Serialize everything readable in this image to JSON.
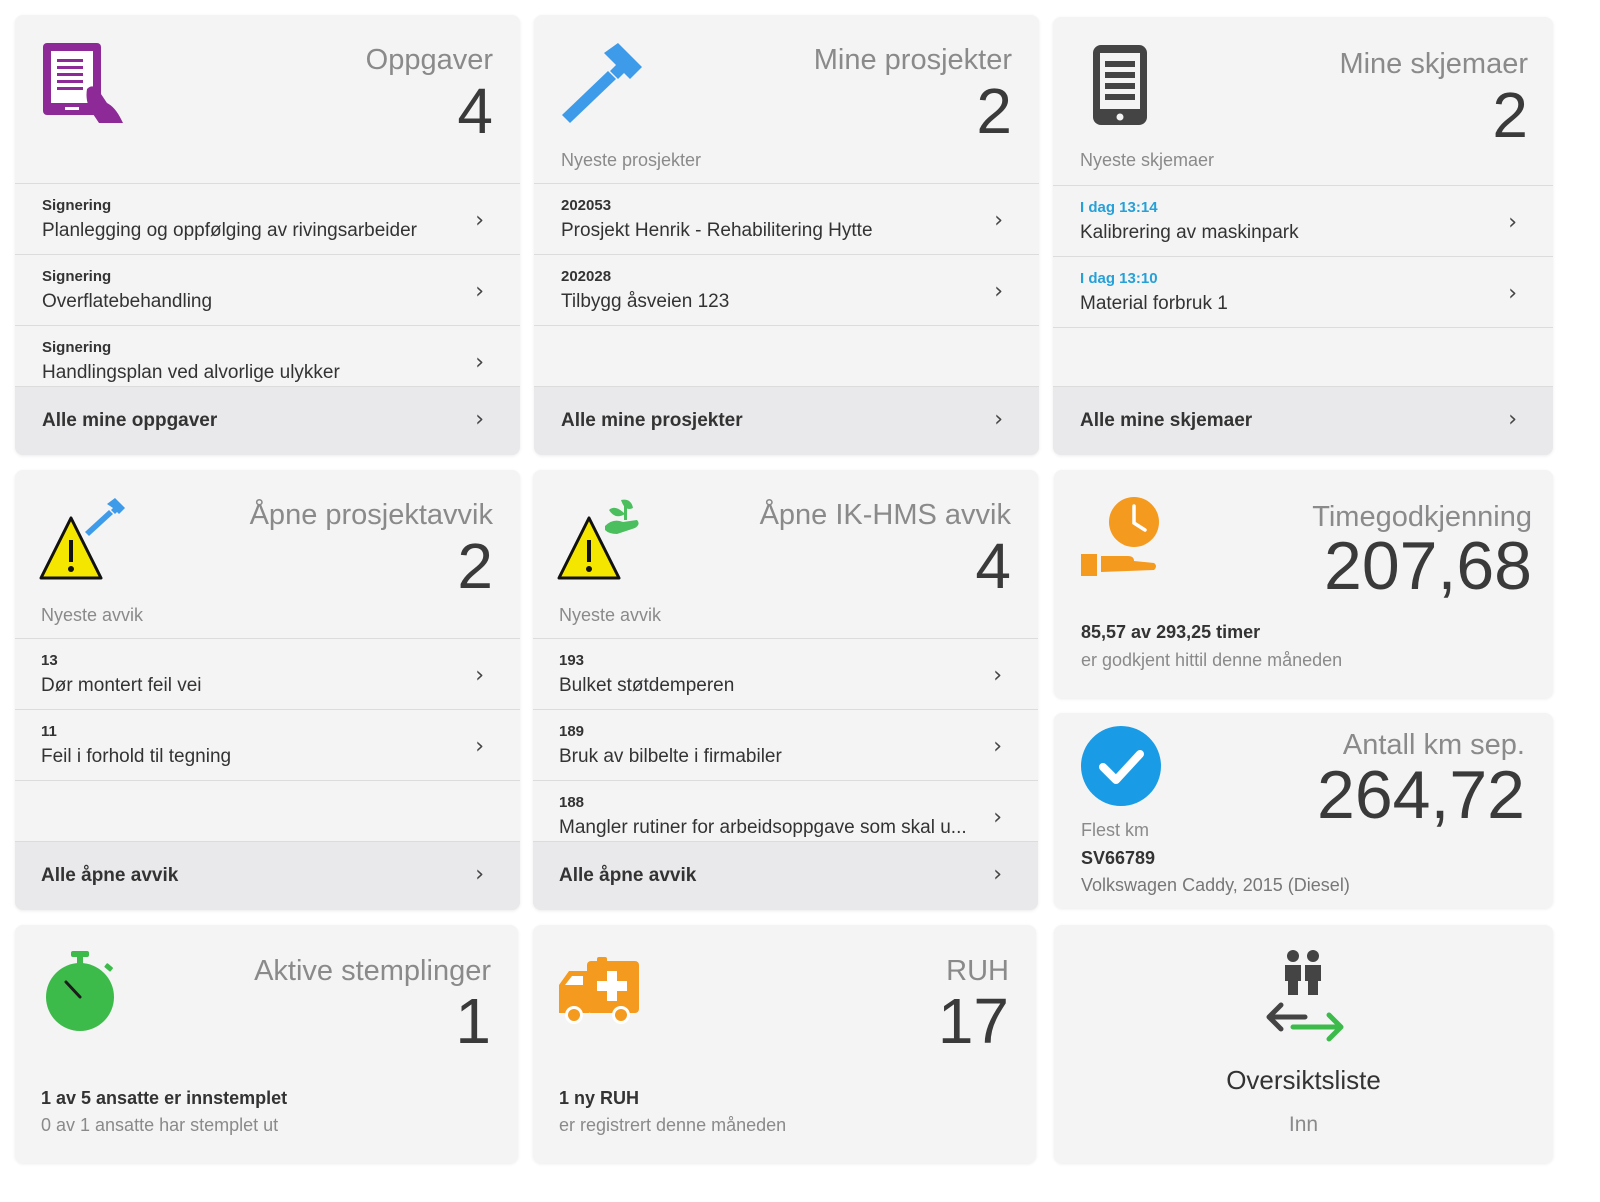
{
  "tasks": {
    "title": "Oppgaver",
    "count": "4",
    "items": [
      {
        "key": "Signering",
        "value": "Planlegging og oppfølging av rivingsarbeider"
      },
      {
        "key": "Signering",
        "value": "Overflatebehandling"
      },
      {
        "key": "Signering",
        "value": "Handlingsplan ved alvorlige ulykker"
      }
    ],
    "footer": "Alle mine oppgaver"
  },
  "projects": {
    "title": "Mine prosjekter",
    "count": "2",
    "subtitle": "Nyeste prosjekter",
    "items": [
      {
        "key": "202053",
        "value": "Prosjekt Henrik - Rehabilitering Hytte"
      },
      {
        "key": "202028",
        "value": "Tilbygg åsveien 123"
      }
    ],
    "footer": "Alle mine prosjekter"
  },
  "forms": {
    "title": "Mine skjemaer",
    "count": "2",
    "subtitle": "Nyeste skjemaer",
    "items": [
      {
        "key": "I dag 13:14",
        "value": "Kalibrering av maskinpark"
      },
      {
        "key": "I dag 13:10",
        "value": "Material forbruk 1"
      }
    ],
    "footer": "Alle mine skjemaer"
  },
  "project_deviations": {
    "title": "Åpne prosjektavvik",
    "count": "2",
    "subtitle": "Nyeste avvik",
    "items": [
      {
        "key": "13",
        "value": "Dør montert feil vei"
      },
      {
        "key": "11",
        "value": "Feil i forhold til tegning"
      }
    ],
    "footer": "Alle åpne avvik"
  },
  "hms_deviations": {
    "title": "Åpne IK-HMS avvik",
    "count": "4",
    "subtitle": "Nyeste avvik",
    "items": [
      {
        "key": "193",
        "value": "Bulket støtdemperen"
      },
      {
        "key": "189",
        "value": "Bruk av bilbelte i firmabiler"
      },
      {
        "key": "188",
        "value": "Mangler rutiner for arbeidsoppgave som skal u..."
      }
    ],
    "footer": "Alle åpne avvik"
  },
  "time_approval": {
    "title": "Timegodkjenning",
    "value": "207,68",
    "line1": "85,57 av 293,25 timer",
    "line2": "er godkjent hittil denne måneden"
  },
  "km": {
    "title": "Antall km sep.",
    "value": "264,72",
    "label": "Flest km",
    "plate": "SV66789",
    "vehicle": "Volkswagen Caddy, 2015 (Diesel)"
  },
  "stamps": {
    "title": "Aktive stemplinger",
    "count": "1",
    "line1": "1 av 5 ansatte er innstemplet",
    "line2": "0 av 1 ansatte har stemplet ut"
  },
  "ruh": {
    "title": "RUH",
    "count": "17",
    "line1": "1 ny RUH",
    "line2": "er registrert denne måneden"
  },
  "overview": {
    "title": "Oversiktsliste",
    "subtitle": "Inn"
  },
  "colors": {
    "purple": "#8e2a98",
    "blue": "#3d9be9",
    "orange": "#f49a1e",
    "green": "#3dbb4a",
    "check_blue": "#1a9be6",
    "time_blue": "#26a0d8",
    "warning_yellow": "#f5e600"
  },
  "chevron": "›"
}
